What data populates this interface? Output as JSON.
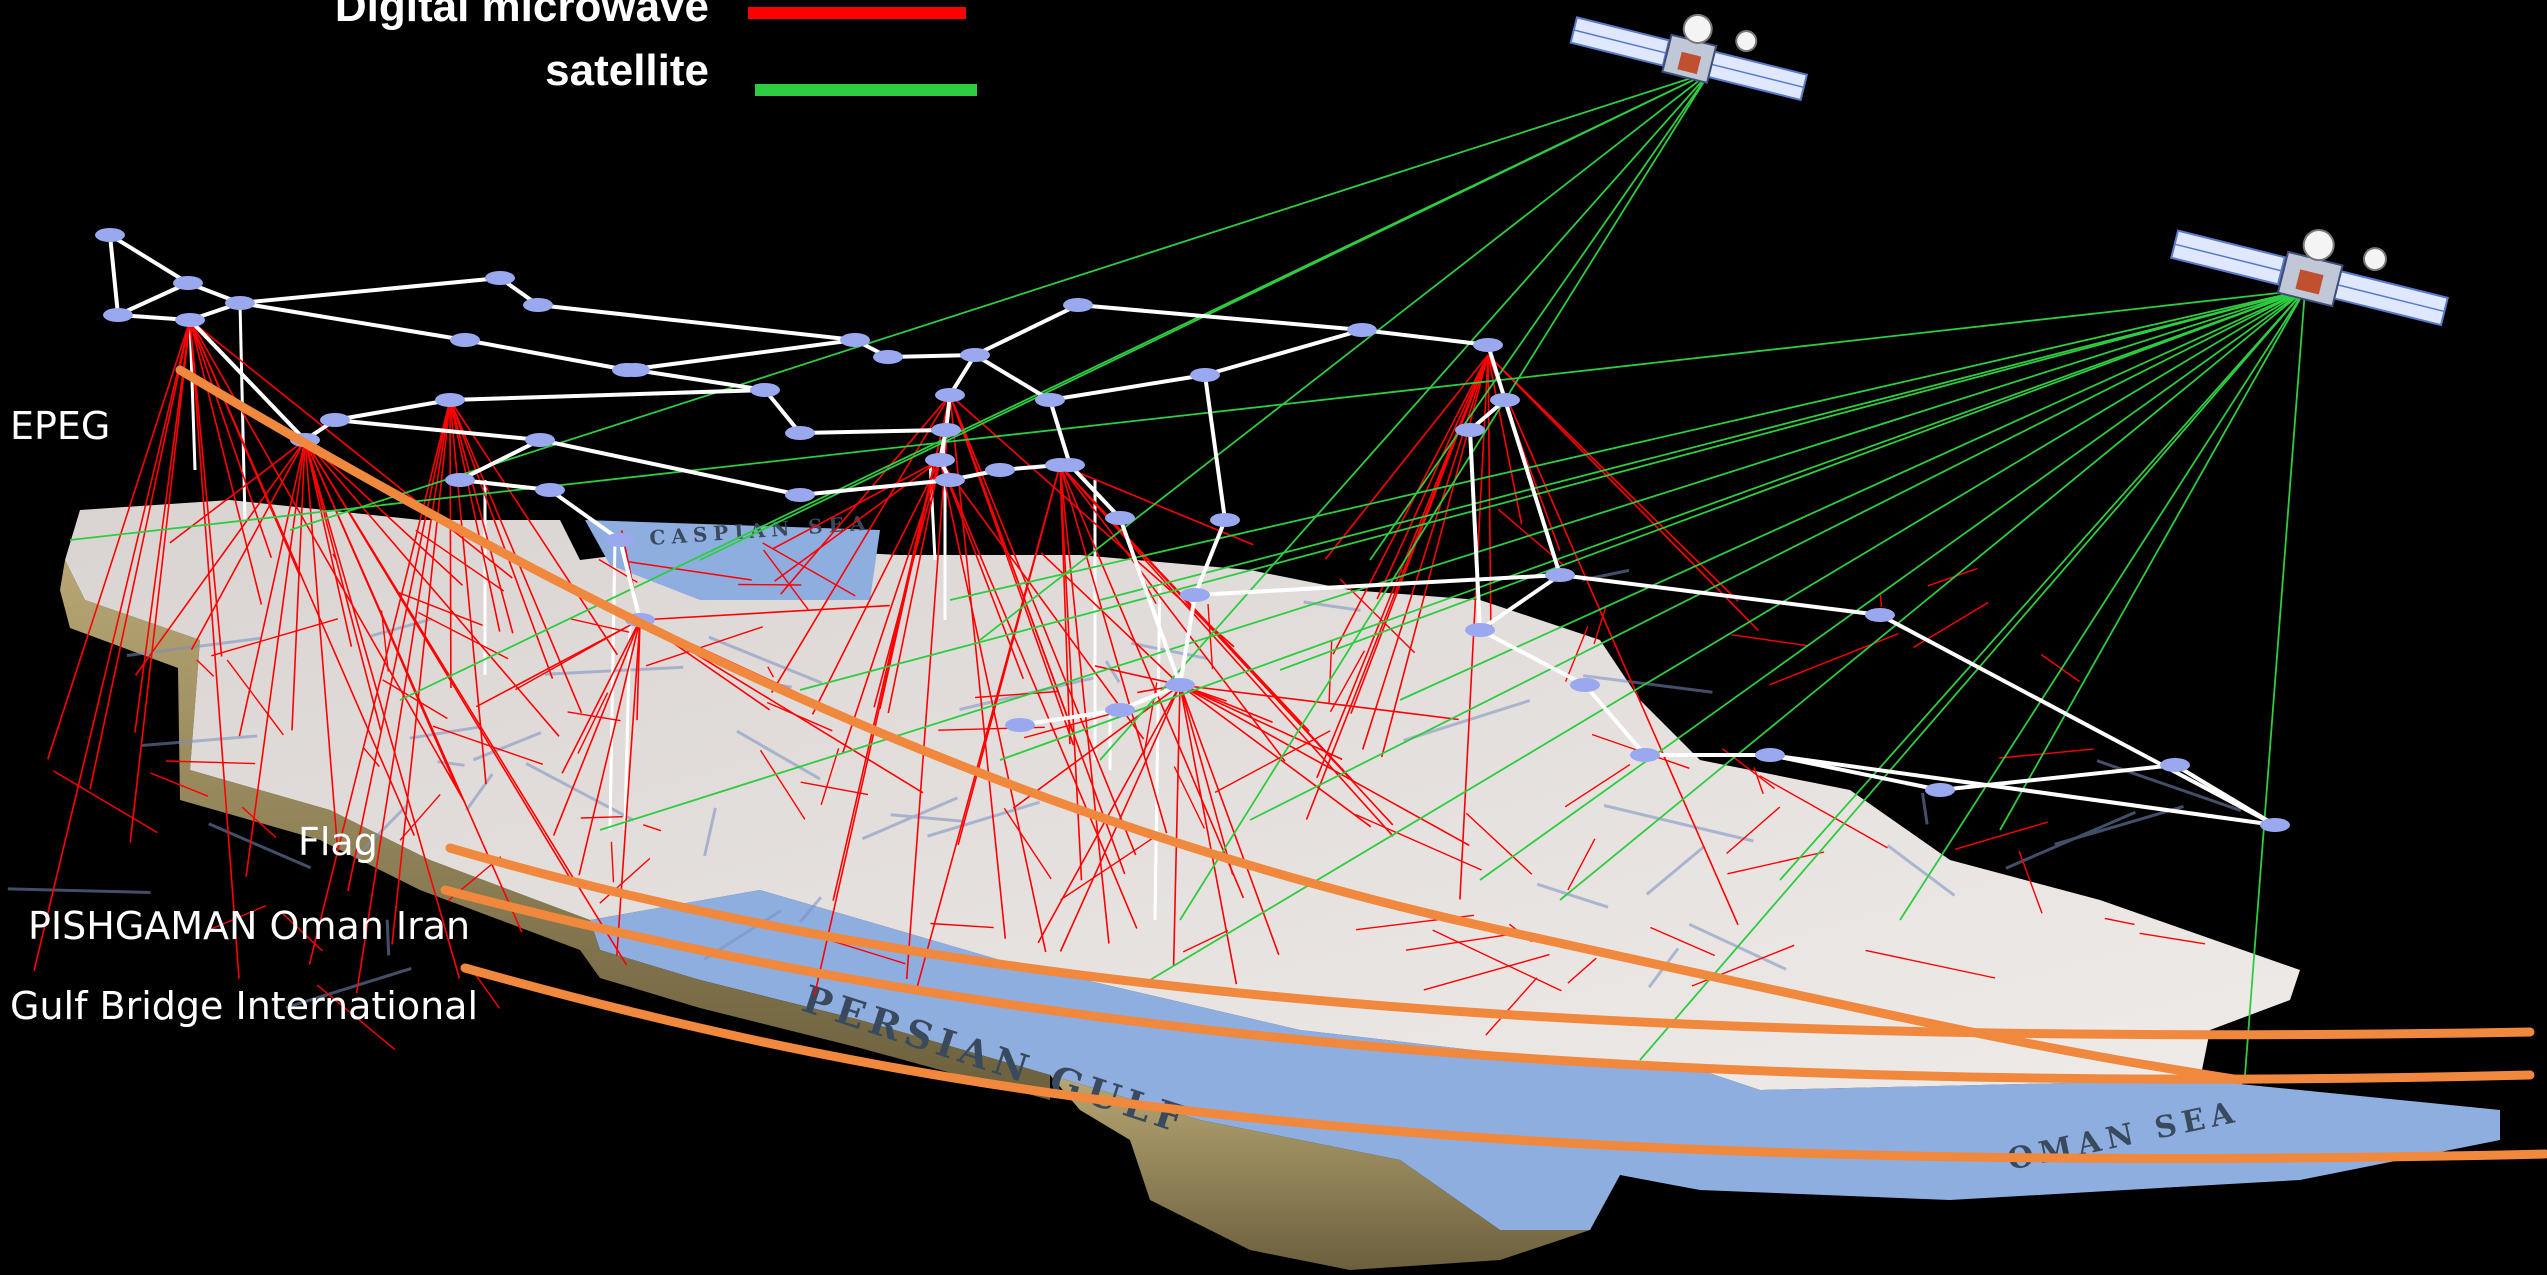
{
  "legend": {
    "items": [
      {
        "label": "Digital microwave",
        "color": "#ff0000"
      },
      {
        "label": "satellite",
        "color": "#2ecc40"
      }
    ]
  },
  "cables": [
    {
      "label": "EPEG",
      "color": "#f0883e"
    },
    {
      "label": "Flag",
      "color": "#f0883e"
    },
    {
      "label": "PISHGAMAN Oman Iran",
      "color": "#f0883e"
    },
    {
      "label": "Gulf Bridge International",
      "color": "#f0883e"
    }
  ],
  "map_labels": {
    "persian_gulf": "PERSIAN  GULF",
    "oman_sea": "OMAN  SEA",
    "caspian_sea": "CASPIAN  SEA"
  },
  "icons": [
    "satellite-icon",
    "satellite-icon"
  ],
  "colors": {
    "background": "#000000",
    "backbone": "#ffffff",
    "node": "#9aa8f0",
    "microwave": "#ff0000",
    "satellite": "#2ecc40",
    "cable": "#f0883e",
    "land": "#e6e2e0",
    "water": "#8eaee0",
    "coast": "#c8b98a"
  }
}
